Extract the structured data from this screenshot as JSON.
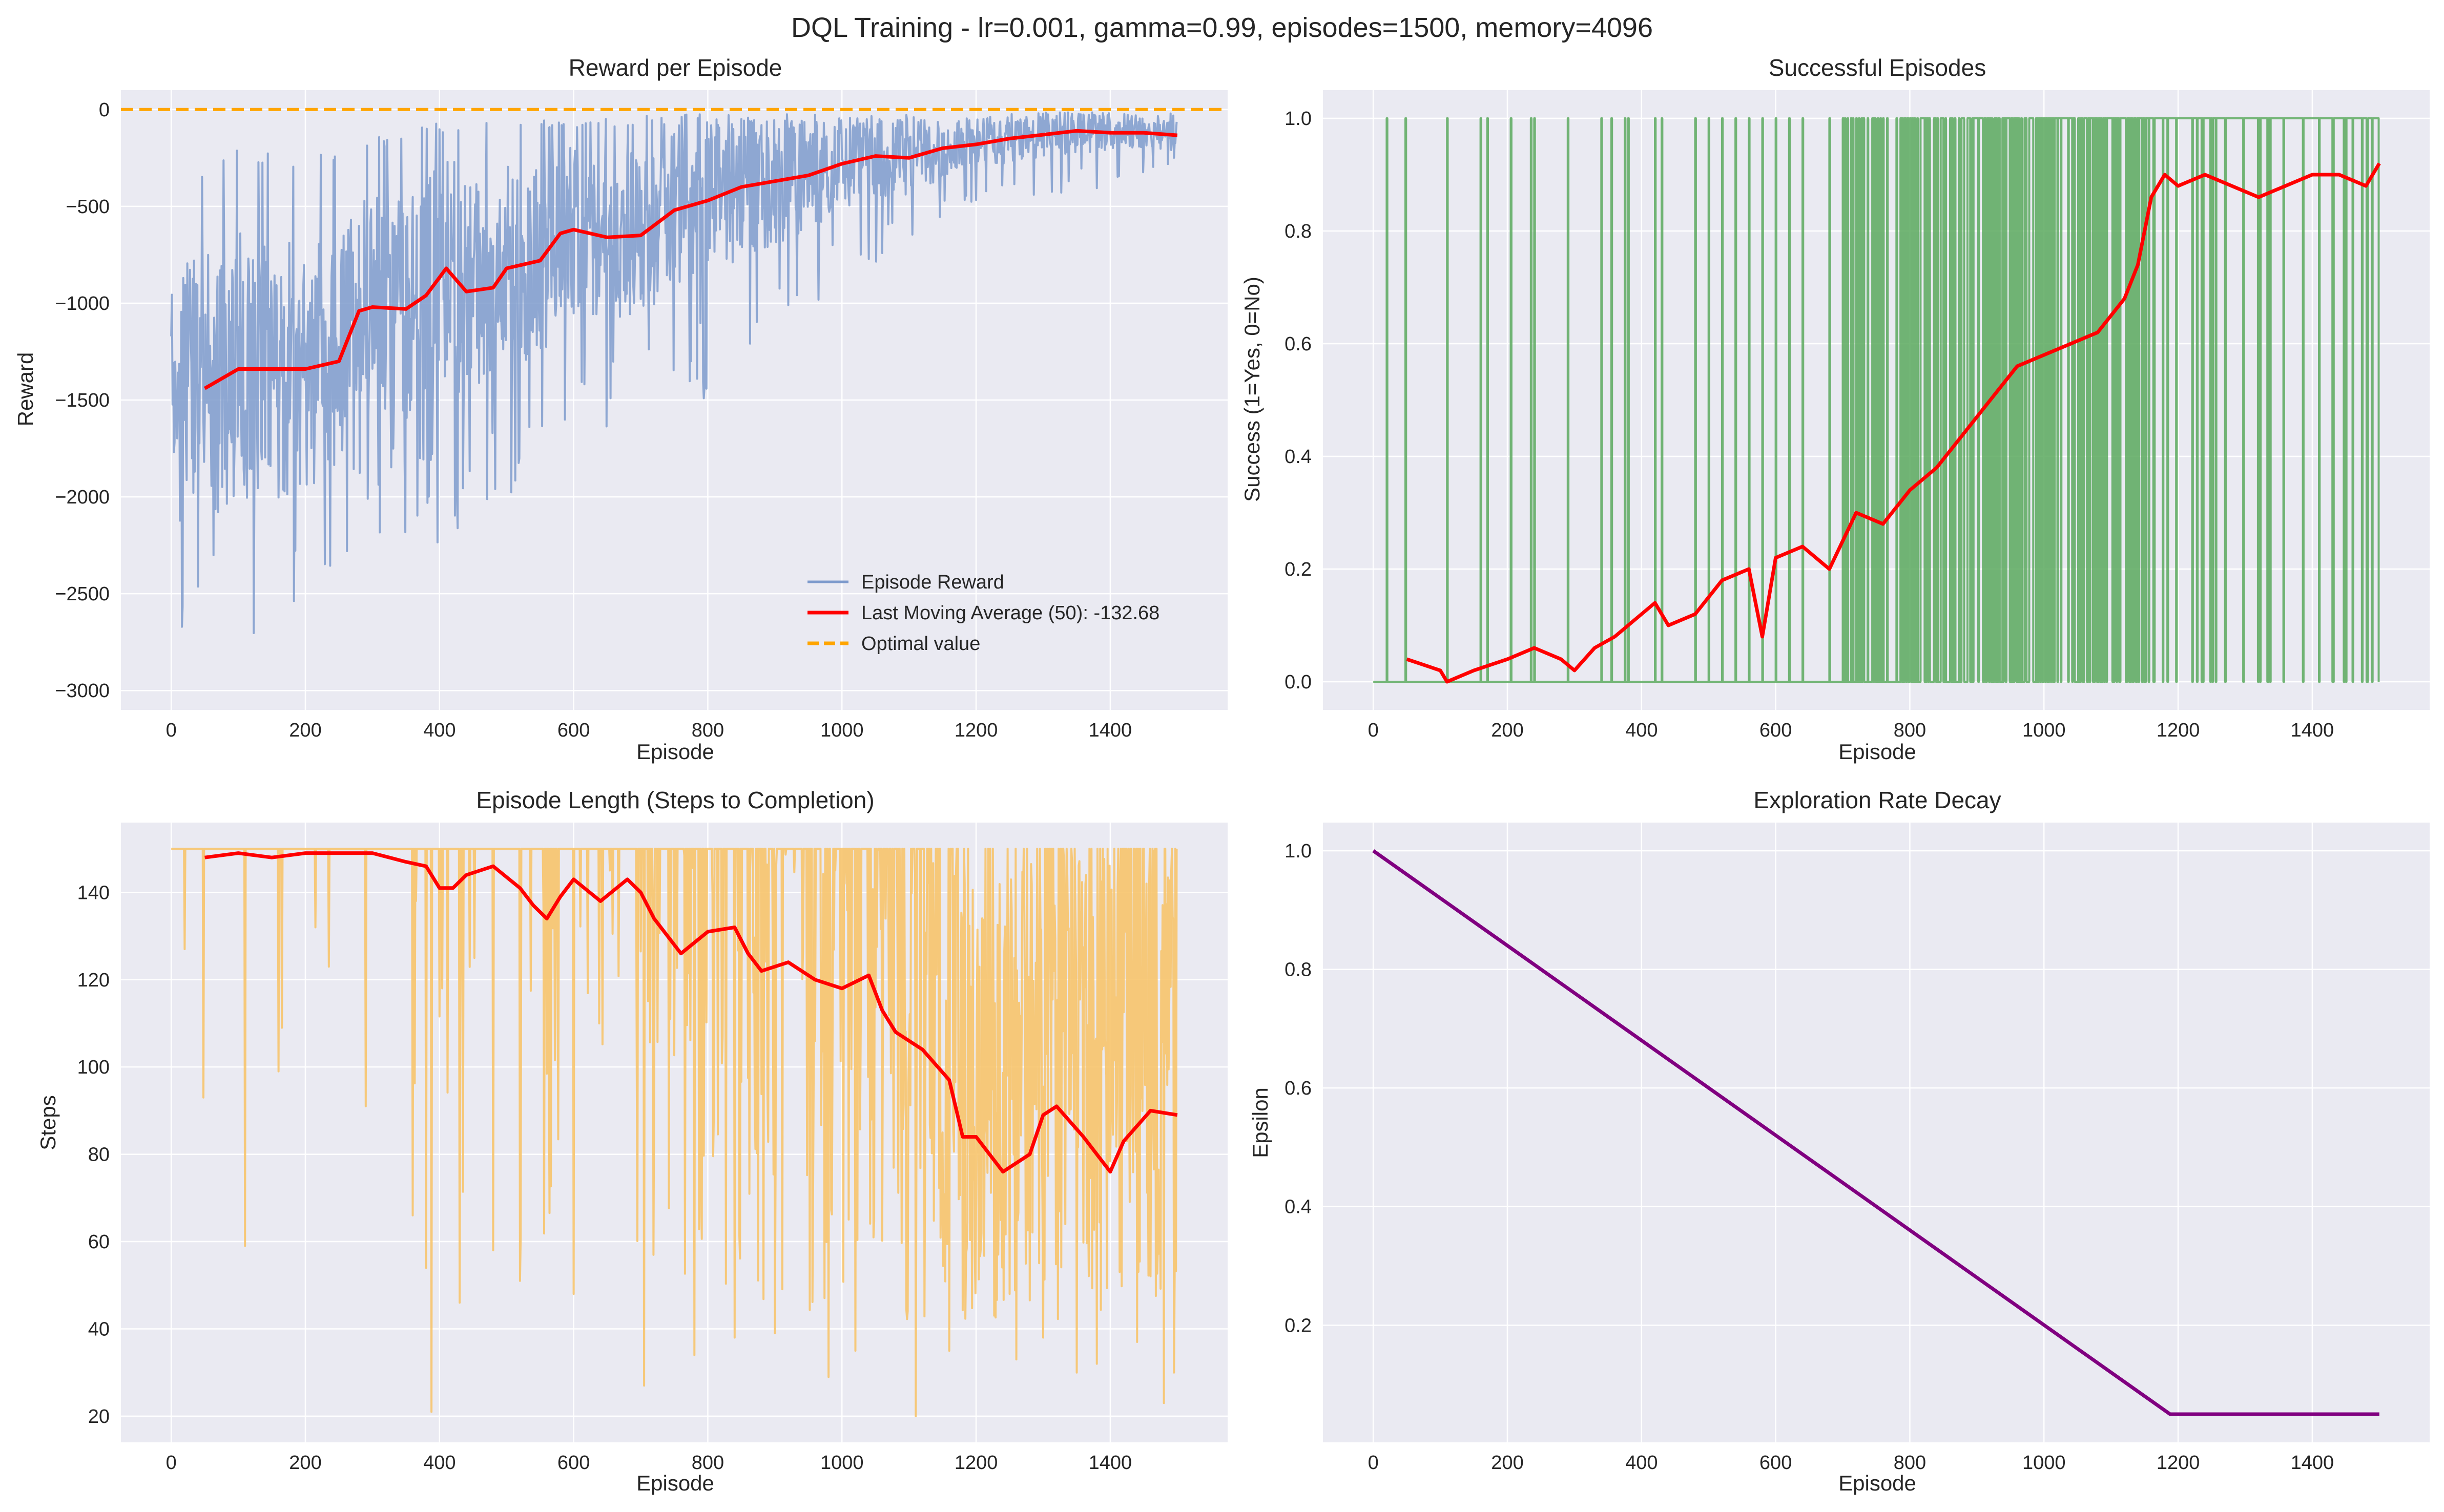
{
  "figure": {
    "suptitle": "DQL Training - lr=0.001, gamma=0.99, episodes=1500, memory=4096"
  },
  "colors": {
    "panel_bg": "#eaeaf2",
    "grid": "#ffffff",
    "reward": "#7e9bcc",
    "moving_average": "#ff0000",
    "optimal": "#ffa500",
    "success": "#5aa95e",
    "steps": "#f7c46b",
    "epsilon": "#800080"
  },
  "chart_data": [
    {
      "id": "reward",
      "type": "line",
      "title": "Reward per Episode",
      "xlabel": "Episode",
      "ylabel": "Reward",
      "xlim": [
        -75,
        1575
      ],
      "ylim": [
        -3100,
        100
      ],
      "xticks": [
        0,
        200,
        400,
        600,
        800,
        1000,
        1200,
        1400
      ],
      "yticks": [
        0,
        -500,
        -1000,
        -1500,
        -2000,
        -2500,
        -3000
      ],
      "ytick_labels": [
        "0",
        "−500",
        "−1000",
        "−1500",
        "−2000",
        "−2500",
        "−3000"
      ],
      "grid": true,
      "legend_position": "lower-right",
      "legend": [
        "Episode Reward",
        "Last Moving Average (50): -132.68",
        "Optimal value"
      ],
      "raw_series": {
        "name": "Episode Reward",
        "episodes": 1500,
        "envelope_x": [
          0,
          100,
          200,
          300,
          400,
          500,
          600,
          700,
          800,
          900,
          1000,
          1100,
          1200,
          1300,
          1400,
          1500
        ],
        "envelope_upper": [
          -400,
          -200,
          -250,
          -150,
          -60,
          -50,
          -40,
          -30,
          -20,
          -20,
          -20,
          -15,
          -20,
          -15,
          -15,
          -20
        ],
        "envelope_lower": [
          -2900,
          -2800,
          -2600,
          -2200,
          -2300,
          -2000,
          -1700,
          -1600,
          -1500,
          -1200,
          -900,
          -700,
          -500,
          -450,
          -400,
          -300
        ]
      },
      "moving_average": {
        "name": "Last Moving Average (50): -132.68",
        "x": [
          50,
          100,
          150,
          200,
          250,
          280,
          300,
          350,
          380,
          410,
          440,
          480,
          500,
          550,
          580,
          600,
          650,
          700,
          750,
          800,
          850,
          900,
          950,
          1000,
          1050,
          1100,
          1150,
          1200,
          1250,
          1300,
          1350,
          1400,
          1450,
          1500
        ],
        "y": [
          -1440,
          -1340,
          -1340,
          -1340,
          -1300,
          -1040,
          -1020,
          -1030,
          -960,
          -820,
          -940,
          -920,
          -820,
          -780,
          -640,
          -620,
          -660,
          -650,
          -520,
          -470,
          -400,
          -370,
          -340,
          -280,
          -240,
          -250,
          -200,
          -180,
          -150,
          -130,
          -110,
          -120,
          -120,
          -133
        ]
      },
      "optimal_value": 0
    },
    {
      "id": "success",
      "type": "line",
      "title": "Successful Episodes",
      "xlabel": "Episode",
      "ylabel": "Success (1=Yes, 0=No)",
      "xlim": [
        -75,
        1575
      ],
      "ylim": [
        -0.05,
        1.05
      ],
      "xticks": [
        0,
        200,
        400,
        600,
        800,
        1000,
        1200,
        1400
      ],
      "yticks": [
        0.0,
        0.2,
        0.4,
        0.6,
        0.8,
        1.0
      ],
      "ytick_labels": [
        "0.0",
        "0.2",
        "0.4",
        "0.6",
        "0.8",
        "1.0"
      ],
      "grid": true,
      "success_episodes": [
        20,
        48,
        110,
        160,
        170,
        205,
        235,
        240,
        290,
        340,
        355,
        375,
        380,
        420,
        430,
        480,
        500,
        520,
        540,
        560,
        580,
        600,
        620,
        640,
        680,
        700,
        730,
        760,
        780,
        800,
        820,
        860,
        880,
        900,
        920,
        940,
        960,
        980,
        1000,
        1030,
        1060,
        1080,
        1100,
        1120,
        1140,
        1160,
        1180,
        1200,
        1220,
        1260,
        1300,
        1340,
        1360,
        1400,
        1420,
        1440,
        1470,
        1490,
        1500
      ],
      "dense_success_range": [
        700,
        1360
      ],
      "moving_average": {
        "x": [
          50,
          100,
          110,
          150,
          200,
          240,
          280,
          300,
          330,
          360,
          400,
          420,
          440,
          480,
          520,
          560,
          580,
          600,
          640,
          680,
          720,
          760,
          800,
          840,
          880,
          920,
          960,
          1000,
          1040,
          1080,
          1120,
          1140,
          1160,
          1180,
          1200,
          1240,
          1280,
          1320,
          1360,
          1400,
          1440,
          1480,
          1500
        ],
        "y": [
          0.04,
          0.02,
          0.0,
          0.02,
          0.04,
          0.06,
          0.04,
          0.02,
          0.06,
          0.08,
          0.12,
          0.14,
          0.1,
          0.12,
          0.18,
          0.2,
          0.08,
          0.22,
          0.24,
          0.2,
          0.3,
          0.28,
          0.34,
          0.38,
          0.44,
          0.5,
          0.56,
          0.58,
          0.6,
          0.62,
          0.68,
          0.74,
          0.86,
          0.9,
          0.88,
          0.9,
          0.88,
          0.86,
          0.88,
          0.9,
          0.9,
          0.88,
          0.92
        ]
      }
    },
    {
      "id": "steps",
      "type": "line",
      "title": "Episode Length (Steps to Completion)",
      "xlabel": "Episode",
      "ylabel": "Steps",
      "xlim": [
        -75,
        1575
      ],
      "ylim": [
        14,
        156
      ],
      "xticks": [
        0,
        200,
        400,
        600,
        800,
        1000,
        1200,
        1400
      ],
      "yticks": [
        20,
        40,
        60,
        80,
        100,
        120,
        140
      ],
      "ytick_labels": [
        "20",
        "40",
        "60",
        "80",
        "100",
        "120",
        "140"
      ],
      "grid": true,
      "max_steps": 150,
      "notable_dips": [
        {
          "x": 20,
          "y": 127
        },
        {
          "x": 48,
          "y": 93
        },
        {
          "x": 110,
          "y": 59
        },
        {
          "x": 160,
          "y": 99
        },
        {
          "x": 165,
          "y": 109
        },
        {
          "x": 215,
          "y": 132
        },
        {
          "x": 235,
          "y": 123
        },
        {
          "x": 290,
          "y": 91
        },
        {
          "x": 360,
          "y": 66
        },
        {
          "x": 380,
          "y": 54
        },
        {
          "x": 388,
          "y": 21
        },
        {
          "x": 430,
          "y": 46
        },
        {
          "x": 480,
          "y": 58
        },
        {
          "x": 520,
          "y": 51
        },
        {
          "x": 600,
          "y": 48
        },
        {
          "x": 705,
          "y": 27
        },
        {
          "x": 780,
          "y": 34
        },
        {
          "x": 840,
          "y": 38
        },
        {
          "x": 900,
          "y": 39
        },
        {
          "x": 980,
          "y": 29
        },
        {
          "x": 1020,
          "y": 35
        },
        {
          "x": 1110,
          "y": 20
        },
        {
          "x": 1160,
          "y": 35
        },
        {
          "x": 1260,
          "y": 33
        },
        {
          "x": 1300,
          "y": 38
        },
        {
          "x": 1350,
          "y": 30
        },
        {
          "x": 1380,
          "y": 32
        },
        {
          "x": 1440,
          "y": 37
        },
        {
          "x": 1480,
          "y": 23
        },
        {
          "x": 1495,
          "y": 30
        }
      ],
      "upper_envelope_x": [
        0,
        300,
        600,
        900,
        1200,
        1500
      ],
      "upper_envelope": [
        150,
        150,
        150,
        150,
        150,
        150
      ],
      "lower_envelope_x": [
        0,
        300,
        380,
        500,
        700,
        900,
        1100,
        1300,
        1500
      ],
      "lower_envelope": [
        150,
        148,
        70,
        60,
        50,
        45,
        42,
        40,
        38
      ],
      "moving_average": {
        "x": [
          50,
          100,
          150,
          200,
          250,
          300,
          350,
          380,
          400,
          420,
          440,
          480,
          520,
          540,
          560,
          580,
          600,
          640,
          680,
          700,
          720,
          760,
          800,
          840,
          860,
          880,
          920,
          960,
          1000,
          1040,
          1060,
          1080,
          1120,
          1160,
          1180,
          1200,
          1220,
          1240,
          1280,
          1300,
          1320,
          1360,
          1400,
          1420,
          1460,
          1500
        ],
        "y": [
          148,
          149,
          148,
          149,
          149,
          149,
          147,
          146,
          141,
          141,
          144,
          146,
          141,
          137,
          134,
          139,
          143,
          138,
          143,
          140,
          134,
          126,
          131,
          132,
          126,
          122,
          124,
          120,
          118,
          121,
          113,
          108,
          104,
          97,
          84,
          84,
          80,
          76,
          80,
          89,
          91,
          84,
          76,
          83,
          90,
          89
        ]
      }
    },
    {
      "id": "epsilon",
      "type": "line",
      "title": "Exploration Rate Decay",
      "xlabel": "Episode",
      "ylabel": "Epsilon",
      "xlim": [
        -75,
        1575
      ],
      "ylim": [
        0.0025,
        1.0475
      ],
      "xticks": [
        0,
        200,
        400,
        600,
        800,
        1000,
        1200,
        1400
      ],
      "yticks": [
        0.2,
        0.4,
        0.6,
        0.8,
        1.0
      ],
      "ytick_labels": [
        "0.2",
        "0.4",
        "0.6",
        "0.8",
        "1.0"
      ],
      "grid": true,
      "x": [
        0,
        1188,
        1500
      ],
      "y": [
        1.0,
        0.05,
        0.05
      ]
    }
  ]
}
